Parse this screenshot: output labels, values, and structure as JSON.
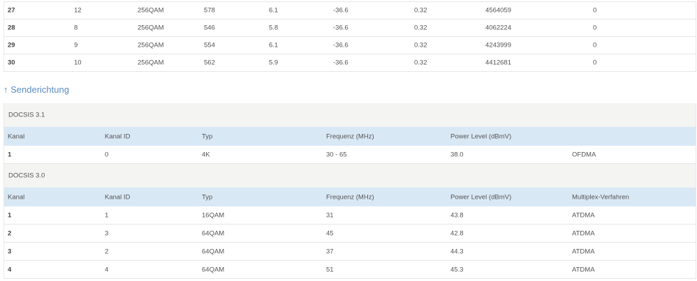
{
  "downstream_rows": [
    [
      "27",
      "12",
      "256QAM",
      "578",
      "6.1",
      "-36.6",
      "0.32",
      "4564059",
      "0"
    ],
    [
      "28",
      "8",
      "256QAM",
      "546",
      "5.8",
      "-36.6",
      "0.32",
      "4062224",
      "0"
    ],
    [
      "29",
      "9",
      "256QAM",
      "554",
      "6.1",
      "-36.6",
      "0.32",
      "4243999",
      "0"
    ],
    [
      "30",
      "10",
      "256QAM",
      "562",
      "5.9",
      "-36.6",
      "0.32",
      "4412681",
      "0"
    ]
  ],
  "upstream": {
    "heading": "↑ Senderichtung",
    "docsis31": {
      "title": "DOCSIS 3.1",
      "headers": [
        "Kanal",
        "Kanal ID",
        "Typ",
        "Frequenz (MHz)",
        "Power Level (dBmV)",
        ""
      ],
      "rows": [
        [
          "1",
          "0",
          "4K",
          "30 - 65",
          "38.0",
          "OFDMA"
        ]
      ]
    },
    "docsis30": {
      "title": "DOCSIS 3.0",
      "headers": [
        "Kanal",
        "Kanal ID",
        "Typ",
        "Frequenz (MHz)",
        "Power Level (dBmV)",
        "Multiplex-Verfahren"
      ],
      "rows": [
        [
          "1",
          "1",
          "16QAM",
          "31",
          "43.8",
          "ATDMA"
        ],
        [
          "2",
          "3",
          "64QAM",
          "45",
          "42.8",
          "ATDMA"
        ],
        [
          "3",
          "2",
          "64QAM",
          "37",
          "44.3",
          "ATDMA"
        ],
        [
          "4",
          "4",
          "64QAM",
          "51",
          "45.3",
          "ATDMA"
        ]
      ]
    }
  }
}
